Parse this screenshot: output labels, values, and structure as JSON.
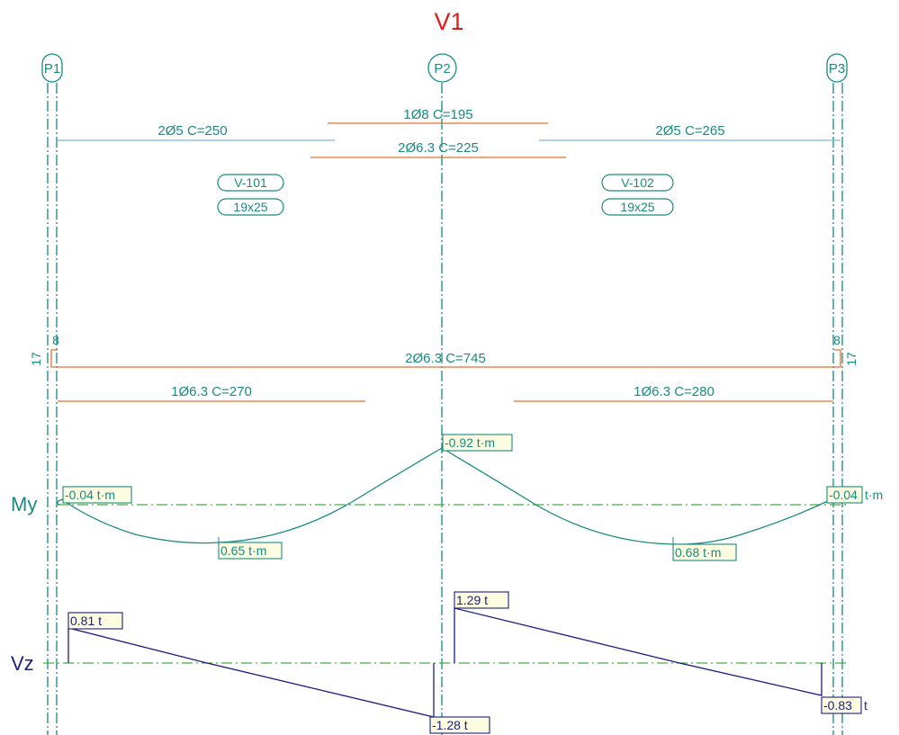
{
  "title": "V1",
  "columns": [
    "P1",
    "P2",
    "P3"
  ],
  "beams": [
    {
      "name": "V-101",
      "section": "19x25"
    },
    {
      "name": "V-102",
      "section": "19x25"
    }
  ],
  "top_bars": {
    "left": "2Ø5  C=250",
    "right": "2Ø5  C=265",
    "center_upper": "1Ø8  C=195",
    "center_lower": "2Ø6.3  C=225"
  },
  "bottom_bars": {
    "main": "2Ø6.3  C=745",
    "left": "1Ø6.3  C=270",
    "right": "1Ø6.3  C=280",
    "hook_length": "8",
    "hook_height": "17"
  },
  "moment": {
    "axis_label": "My",
    "left_support": "-0.04 t·m",
    "span1": "0.65 t·m",
    "center_support": "-0.92 t·m",
    "span2": "0.68 t·m",
    "right_support_value": "-0.04",
    "right_support_unit": "t·m"
  },
  "shear": {
    "axis_label": "Vz",
    "left_start": "0.81 t",
    "left_end": "-1.28 t",
    "right_start": "1.29 t",
    "right_end_value": "-0.83",
    "right_end_unit": "t"
  },
  "colors": {
    "title": "#e41a1a",
    "teal": "#1a8a80",
    "orange": "#e07030",
    "light_blue": "#80b8e0",
    "navy": "#1c1e80",
    "green_axis": "#40b040",
    "label_fill": "#fdfbe0"
  }
}
